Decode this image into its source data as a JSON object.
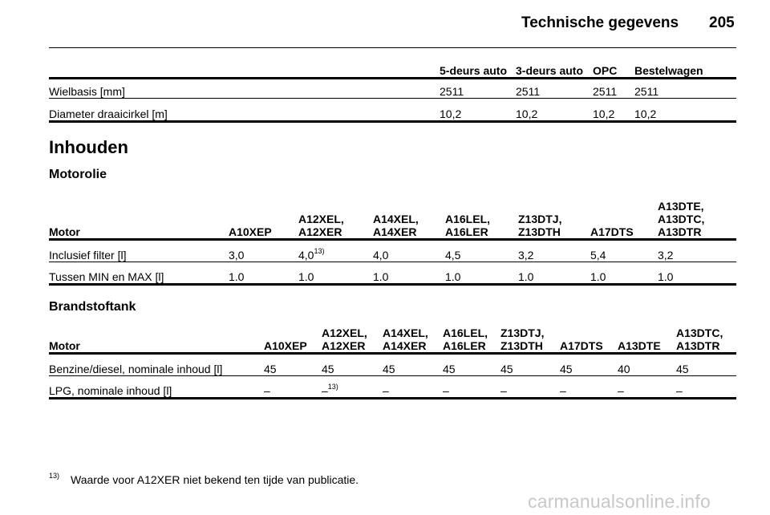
{
  "header": {
    "title": "Technische gegevens",
    "page_number": "205"
  },
  "dims_table": {
    "columns": [
      "",
      "5-deurs auto",
      "3-deurs auto",
      "OPC",
      "Bestelwagen"
    ],
    "rows": [
      [
        "Wielbasis [mm]",
        "2511",
        "2511",
        "2511",
        "2511"
      ],
      [
        "Diameter draaicirkel [m]",
        "10,2",
        "10,2",
        "10,2",
        "10,2"
      ]
    ]
  },
  "section": {
    "title": "Inhouden"
  },
  "oil": {
    "title": "Motorolie",
    "columns": [
      "Motor",
      "A10XEP",
      "A12XEL,\nA12XER",
      "A14XEL,\nA14XER",
      "A16LEL,\nA16LER",
      "Z13DTJ,\nZ13DTH",
      "A17DTS",
      "A13DTE,\nA13DTC,\nA13DTR"
    ],
    "rows": [
      [
        "Inclusief filter [l]",
        "3,0",
        "4,0",
        "4,0",
        "4,5",
        "3,2",
        "5,4",
        "3,2"
      ],
      [
        "Tussen MIN en MAX [l]",
        "1.0",
        "1.0",
        "1.0",
        "1.0",
        "1.0",
        "1.0",
        "1.0"
      ]
    ],
    "footnote_mark": "13)"
  },
  "fuel": {
    "title": "Brandstoftank",
    "columns": [
      "Motor",
      "A10XEP",
      "A12XEL,\nA12XER",
      "A14XEL,\nA14XER",
      "A16LEL,\nA16LER",
      "Z13DTJ,\nZ13DTH",
      "A17DTS",
      "A13DTE",
      "A13DTC,\nA13DTR"
    ],
    "rows": [
      [
        "Benzine/diesel, nominale inhoud [l]",
        "45",
        "45",
        "45",
        "45",
        "45",
        "45",
        "40",
        "45"
      ],
      [
        "LPG, nominale inhoud [l]",
        "–",
        "–",
        "–",
        "–",
        "–",
        "–",
        "–",
        "–"
      ]
    ],
    "footnote_mark": "13)"
  },
  "footnote": {
    "mark": "13)",
    "text": "Waarde voor A12XER niet bekend ten tijde van publicatie."
  },
  "watermark": "carmanualsonline.info"
}
